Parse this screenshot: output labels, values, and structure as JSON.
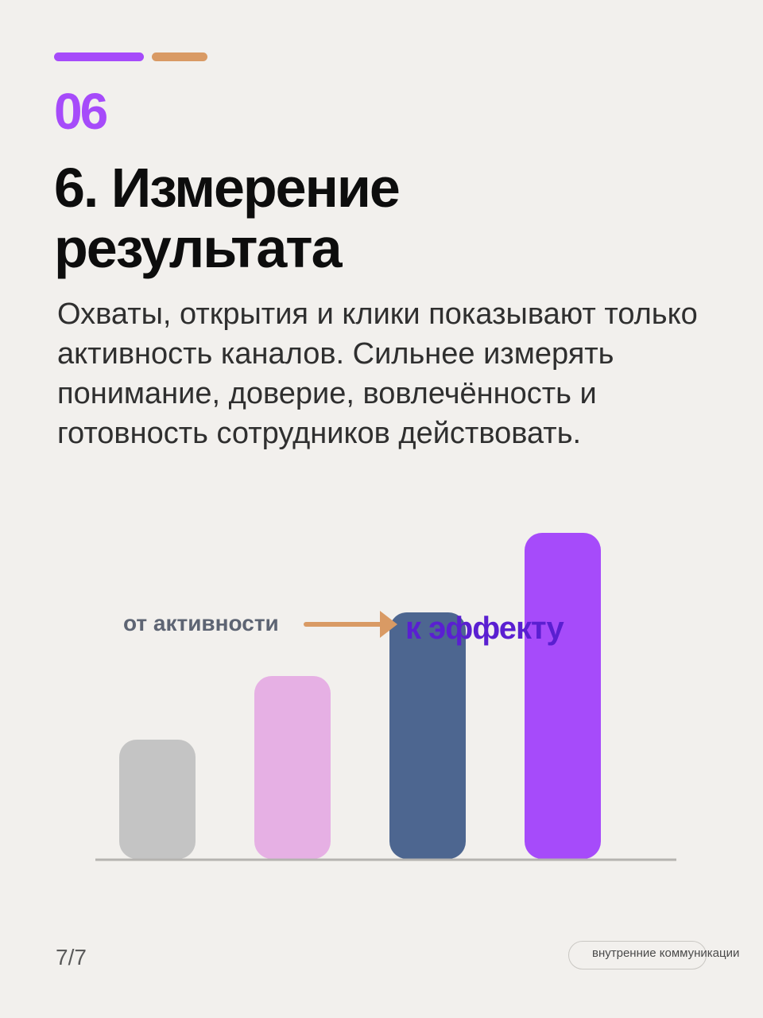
{
  "header": {
    "accent_colors": [
      "#a64bfa",
      "#d99a64"
    ],
    "number": "06"
  },
  "title": {
    "line1": "6. Измерение",
    "line2": "результата"
  },
  "body": "Охваты, открытия и клики показывают только активность каналов. Сильнее измерять понимание, доверие, вовлечённость и готовность сотрудников действовать.",
  "chart_data": {
    "type": "bar",
    "categories": [
      "",
      "",
      "",
      ""
    ],
    "values": [
      1.5,
      2.3,
      3.1,
      4.1
    ],
    "colors": [
      "#c4c4c4",
      "#e6b0e4",
      "#4d6690",
      "#a64bfa"
    ],
    "ylim": [
      0,
      4.1
    ],
    "grid": false,
    "annotations": {
      "from_label": "от активности",
      "to_label": "к эффекту",
      "arrow_color": "#d99a64",
      "from_color": "#5d6473",
      "to_color": "#5a1fd1"
    }
  },
  "footer": {
    "page": "7/7",
    "tag": "внутренние коммуникации"
  }
}
